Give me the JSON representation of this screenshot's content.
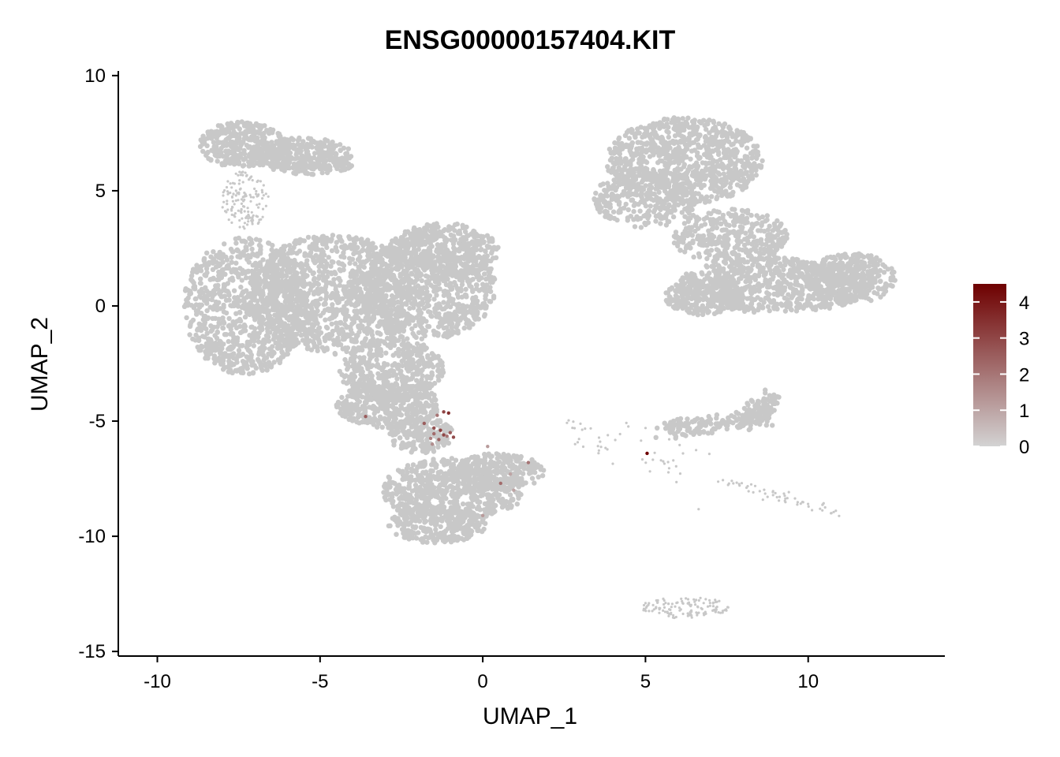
{
  "chart_data": {
    "type": "scatter",
    "title": "ENSG00000157404.KIT",
    "xlabel": "UMAP_1",
    "ylabel": "UMAP_2",
    "xlim": [
      -11.2,
      14.2
    ],
    "ylim": [
      -15.2,
      10.2
    ],
    "x_ticks": [
      -10,
      -5,
      0,
      5,
      10
    ],
    "x_tick_labels": [
      "-10",
      "-5",
      "0",
      "5",
      "10"
    ],
    "y_ticks": [
      10,
      5,
      0,
      -5,
      -10,
      -15
    ],
    "y_tick_labels": [
      "10",
      "5",
      "0",
      "-5",
      "-10",
      "-15"
    ],
    "grid": false,
    "colors": {
      "low": "#d3d3d3",
      "high": "#6e0000",
      "background_cells": "#c8c8c8"
    },
    "legend": {
      "position": "right",
      "min": 0,
      "max": 4.5,
      "ticks": [
        4,
        3,
        2,
        1,
        0
      ],
      "tick_labels": [
        "4",
        "3",
        "2",
        "1",
        "0"
      ]
    },
    "expressing_cells": [
      {
        "x": -1.2,
        "y": -4.6,
        "value": 3.0
      },
      {
        "x": -1.05,
        "y": -4.65,
        "value": 3.5
      },
      {
        "x": -1.4,
        "y": -4.75,
        "value": 2.0
      },
      {
        "x": -1.8,
        "y": -5.1,
        "value": 2.5
      },
      {
        "x": -1.5,
        "y": -5.3,
        "value": 2.8
      },
      {
        "x": -1.3,
        "y": -5.4,
        "value": 3.2
      },
      {
        "x": -1.5,
        "y": -5.55,
        "value": 2.2
      },
      {
        "x": -1.2,
        "y": -5.6,
        "value": 3.0
      },
      {
        "x": -1.0,
        "y": -5.5,
        "value": 2.6
      },
      {
        "x": -1.6,
        "y": -5.75,
        "value": 1.8
      },
      {
        "x": -1.35,
        "y": -5.8,
        "value": 2.4
      },
      {
        "x": -0.9,
        "y": -5.7,
        "value": 2.9
      },
      {
        "x": -1.1,
        "y": -5.65,
        "value": 2.0
      },
      {
        "x": -1.55,
        "y": -6.0,
        "value": 1.5
      },
      {
        "x": -3.6,
        "y": -4.8,
        "value": 2.5
      },
      {
        "x": 0.15,
        "y": -6.1,
        "value": 1.2
      },
      {
        "x": 0.85,
        "y": -7.3,
        "value": 1.0
      },
      {
        "x": 1.4,
        "y": -6.8,
        "value": 2.0
      },
      {
        "x": 0.55,
        "y": -7.7,
        "value": 2.2
      },
      {
        "x": 0.95,
        "y": -8.0,
        "value": 1.0
      },
      {
        "x": 0.0,
        "y": -9.1,
        "value": 1.2
      },
      {
        "x": 5.05,
        "y": -6.4,
        "value": 4.5
      }
    ]
  }
}
